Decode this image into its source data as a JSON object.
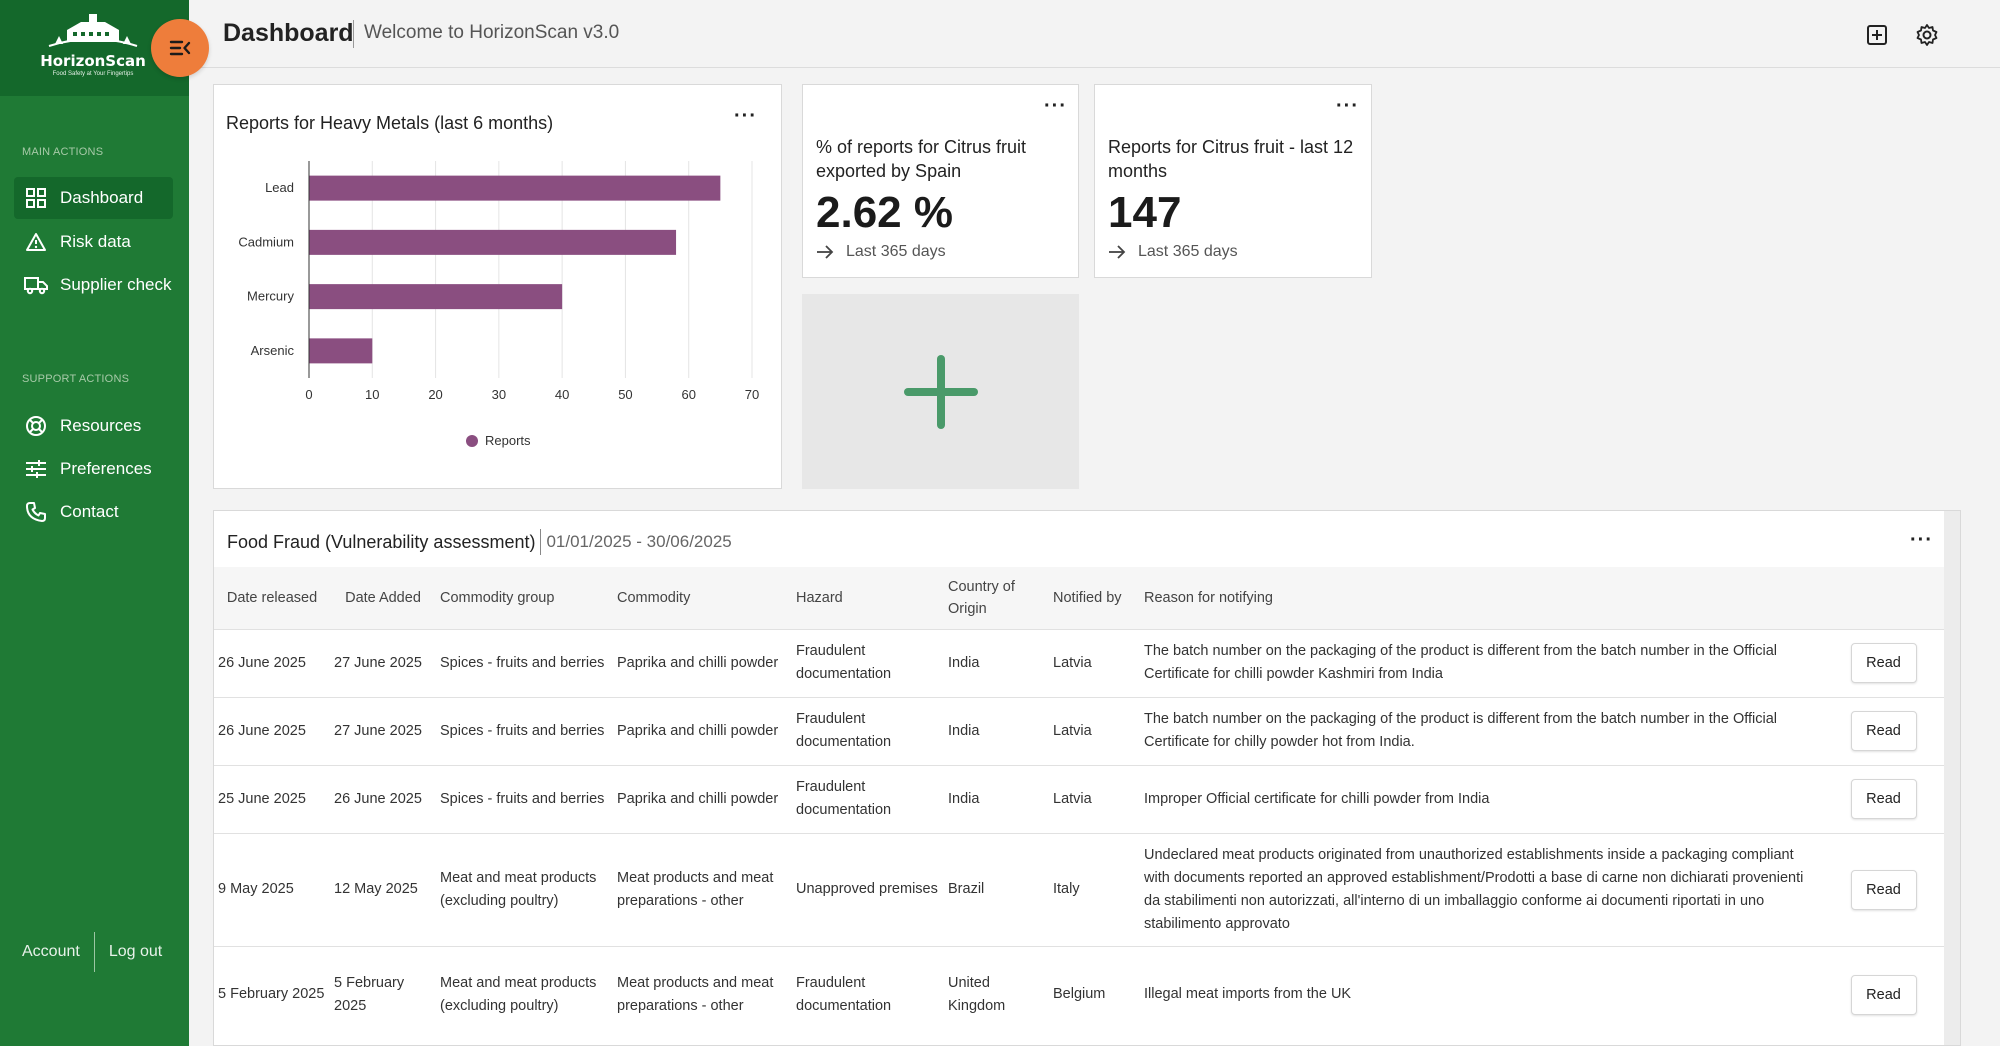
{
  "app": {
    "brand": "HorizonScan",
    "tagline": "Food Safety at Your Fingertips"
  },
  "sidebar": {
    "main_label": "MAIN ACTIONS",
    "main_items": [
      {
        "label": "Dashboard",
        "icon": "dashboard-icon",
        "active": true
      },
      {
        "label": "Risk data",
        "icon": "warning-icon"
      },
      {
        "label": "Supplier check",
        "icon": "truck-icon"
      }
    ],
    "support_label": "SUPPORT ACTIONS",
    "support_items": [
      {
        "label": "Resources",
        "icon": "lifebuoy-icon"
      },
      {
        "label": "Preferences",
        "icon": "sliders-icon"
      },
      {
        "label": "Contact",
        "icon": "phone-icon"
      }
    ],
    "account": "Account",
    "logout": "Log out"
  },
  "header": {
    "title": "Dashboard",
    "subtitle": "Welcome to HorizonScan v3.0"
  },
  "colors": {
    "sidebar": "#1f7a35",
    "sidebar_dark": "#14682b",
    "accent_orange": "#ee7d3b",
    "bar": "#8a4e80",
    "plus": "#4a9a6a"
  },
  "heavy_metals": {
    "title": "Reports for Heavy Metals (last 6 months)",
    "legend": "Reports"
  },
  "chart_data": {
    "type": "bar",
    "orientation": "horizontal",
    "title": "Reports for Heavy Metals (last 6 months)",
    "categories": [
      "Lead",
      "Cadmium",
      "Mercury",
      "Arsenic"
    ],
    "series": [
      {
        "name": "Reports",
        "values": [
          65,
          58,
          40,
          10
        ]
      }
    ],
    "xlim": [
      0,
      70
    ],
    "xticks": [
      0,
      10,
      20,
      30,
      40,
      50,
      60,
      70
    ],
    "grid": true,
    "legend": "bottom-center"
  },
  "kpi1": {
    "label": "% of reports for Citrus fruit exported by Spain",
    "value": "2.62 %",
    "footer": "Last 365 days"
  },
  "kpi2": {
    "label": "Reports for Citrus fruit - last 12 months",
    "value": "147",
    "footer": "Last 365 days"
  },
  "fraud": {
    "title": "Food Fraud (Vulnerability assessment)",
    "range": "01/01/2025 - 30/06/2025",
    "columns": {
      "released": "Date released",
      "added": "Date Added",
      "group": "Commodity group",
      "commodity": "Commodity",
      "hazard": "Hazard",
      "origin": "Country of Origin",
      "notified": "Notified by",
      "reason": "Reason for notifying"
    },
    "read_label": "Read",
    "rows": [
      {
        "released": "26 June 2025",
        "added": "27 June 2025",
        "group": "Spices - fruits and berries",
        "commodity": "Paprika and chilli powder",
        "hazard": "Fraudulent documentation",
        "origin": "India",
        "notified": "Latvia",
        "reason": "The batch number on the packaging of the product is different from the batch number in the Official Certificate for chilli powder Kashmiri from India"
      },
      {
        "released": "26 June 2025",
        "added": "27 June 2025",
        "group": "Spices - fruits and berries",
        "commodity": "Paprika and chilli powder",
        "hazard": "Fraudulent documentation",
        "origin": "India",
        "notified": "Latvia",
        "reason": "The batch number on the packaging of the product is different from the batch number in the Official Certificate for chilly powder hot from India."
      },
      {
        "released": "25 June 2025",
        "added": "26 June 2025",
        "group": "Spices - fruits and berries",
        "commodity": "Paprika and chilli powder",
        "hazard": "Fraudulent documentation",
        "origin": "India",
        "notified": "Latvia",
        "reason": "Improper Official certificate for chilli powder from India"
      },
      {
        "released": "9 May 2025",
        "added": "12 May 2025",
        "group": "Meat and meat products (excluding poultry)",
        "commodity": "Meat products and meat preparations - other",
        "hazard": "Unapproved premises",
        "origin": "Brazil",
        "notified": "Italy",
        "reason": "Undeclared meat products originated from unauthorized establishments inside a packaging compliant with documents reported an approved establishment/Prodotti a base di carne non dichiarati provenienti da stabilimenti non autorizzati, all'interno di un imballaggio conforme ai documenti riportati in uno stabilimento approvato"
      },
      {
        "released": "5 February 2025",
        "added": "5 February 2025",
        "group": "Meat and meat products (excluding poultry)",
        "commodity": "Meat products and meat preparations - other",
        "hazard": "Fraudulent documentation",
        "origin": "United Kingdom",
        "notified": "Belgium",
        "reason": "Illegal meat imports from the UK"
      }
    ]
  }
}
